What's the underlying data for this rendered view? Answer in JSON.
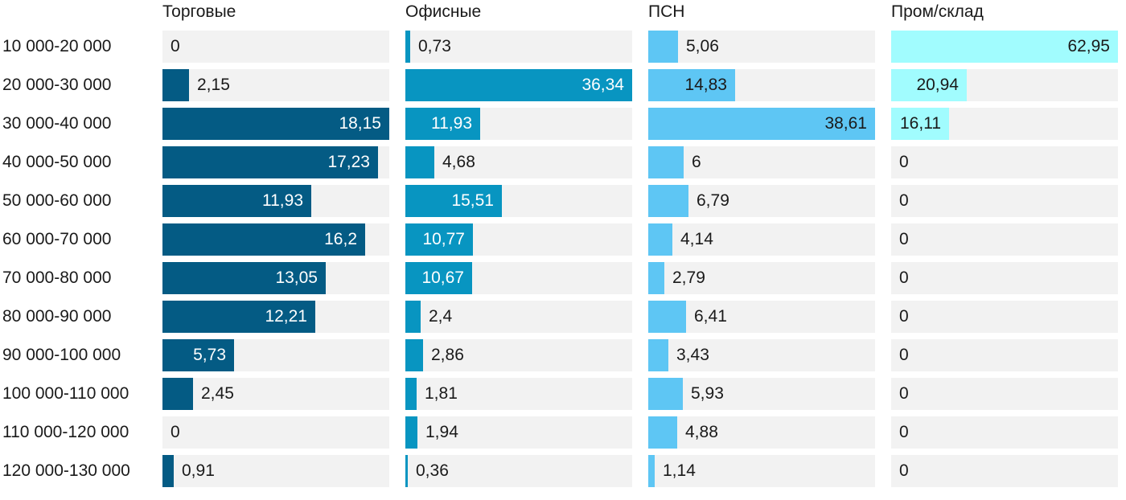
{
  "chart_data": {
    "type": "bar",
    "orientation": "horizontal",
    "layout": "small-multiples",
    "categories": [
      "10 000-20 000",
      "20 000-30 000",
      "30 000-40 000",
      "40 000-50 000",
      "50 000-60 000",
      "60 000-70 000",
      "70 000-80 000",
      "80 000-90 000",
      "90 000-100 000",
      "100 000-110 000",
      "110 000-120 000",
      "120 000-130 000"
    ],
    "series": [
      {
        "name": "Торговые",
        "color": "#045b84",
        "values": [
          0,
          2.15,
          18.15,
          17.23,
          11.93,
          16.2,
          13.05,
          12.21,
          5.73,
          2.45,
          0,
          0.91
        ],
        "labels": [
          "0",
          "2,15",
          "18,15",
          "17,23",
          "11,93",
          "16,2",
          "13,05",
          "12,21",
          "5,73",
          "2,45",
          "0",
          "0,91"
        ]
      },
      {
        "name": "Офисные",
        "color": "#0895c1",
        "values": [
          0.73,
          36.34,
          11.93,
          4.68,
          15.51,
          10.77,
          10.67,
          2.4,
          2.86,
          1.81,
          1.94,
          0.36
        ],
        "labels": [
          "0,73",
          "36,34",
          "11,93",
          "4,68",
          "15,51",
          "10,77",
          "10,67",
          "2,4",
          "2,86",
          "1,81",
          "1,94",
          "0,36"
        ]
      },
      {
        "name": "ПСН",
        "color": "#5ec6f4",
        "values": [
          5.06,
          14.83,
          38.61,
          6,
          6.79,
          4.14,
          2.79,
          6.41,
          3.43,
          5.93,
          4.88,
          1.14
        ],
        "labels": [
          "5,06",
          "14,83",
          "38,61",
          "6",
          "6,79",
          "4,14",
          "2,79",
          "6,41",
          "3,43",
          "5,93",
          "4,88",
          "1,14"
        ]
      },
      {
        "name": "Пром/склад",
        "color": "#a1fcfe",
        "values": [
          62.95,
          20.94,
          16.11,
          0,
          0,
          0,
          0,
          0,
          0,
          0,
          0,
          0
        ],
        "labels": [
          "62,95",
          "20,94",
          "16,11",
          "0",
          "0",
          "0",
          "0",
          "0",
          "0",
          "0",
          "0",
          "0"
        ]
      }
    ],
    "title": "",
    "xlabel": "",
    "ylabel": "",
    "grid": false,
    "legend": "none"
  }
}
